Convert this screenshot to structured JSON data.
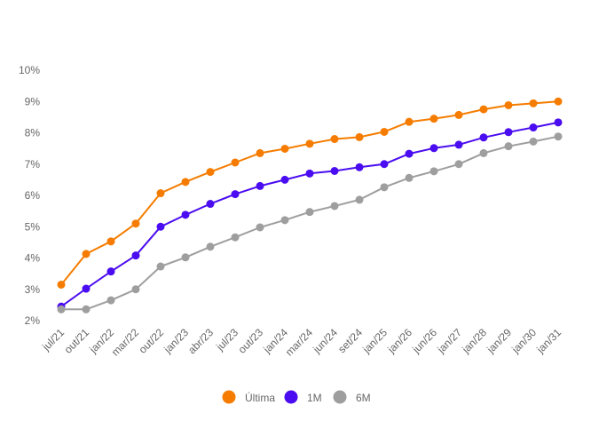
{
  "chart_data": {
    "type": "line",
    "x": [
      "jul/21",
      "out/21",
      "jan/22",
      "mar/22",
      "out/22",
      "jan/23",
      "abr/23",
      "jul/23",
      "out/23",
      "jan/24",
      "mar/24",
      "jun/24",
      "set/24",
      "jan/25",
      "jan/26",
      "jun/26",
      "jan/27",
      "jan/28",
      "jan/29",
      "jan/30",
      "jan/31"
    ],
    "series": [
      {
        "name": "Última",
        "color": "#f57c00",
        "values": [
          3.15,
          4.13,
          4.53,
          5.1,
          6.07,
          6.43,
          6.75,
          7.05,
          7.35,
          7.49,
          7.65,
          7.8,
          7.86,
          8.03,
          8.35,
          8.45,
          8.57,
          8.75,
          8.88,
          8.94,
          9.0
        ]
      },
      {
        "name": "1M",
        "color": "#4a0cf0",
        "values": [
          2.45,
          3.02,
          3.57,
          4.08,
          5.0,
          5.38,
          5.73,
          6.04,
          6.3,
          6.5,
          6.7,
          6.78,
          6.9,
          7.0,
          7.33,
          7.51,
          7.62,
          7.85,
          8.02,
          8.17,
          8.33
        ]
      },
      {
        "name": "6M",
        "color": "#9e9e9e",
        "values": [
          2.36,
          2.36,
          2.65,
          3.0,
          3.73,
          4.02,
          4.36,
          4.66,
          4.98,
          5.21,
          5.47,
          5.66,
          5.86,
          6.26,
          6.56,
          6.77,
          7.0,
          7.35,
          7.57,
          7.72,
          7.88
        ]
      }
    ],
    "yticks": [
      "2%",
      "3%",
      "4%",
      "5%",
      "6%",
      "7%",
      "8%",
      "9%",
      "10%"
    ],
    "ylim": [
      2,
      10
    ],
    "grid": false,
    "legend_position": "bottom"
  }
}
